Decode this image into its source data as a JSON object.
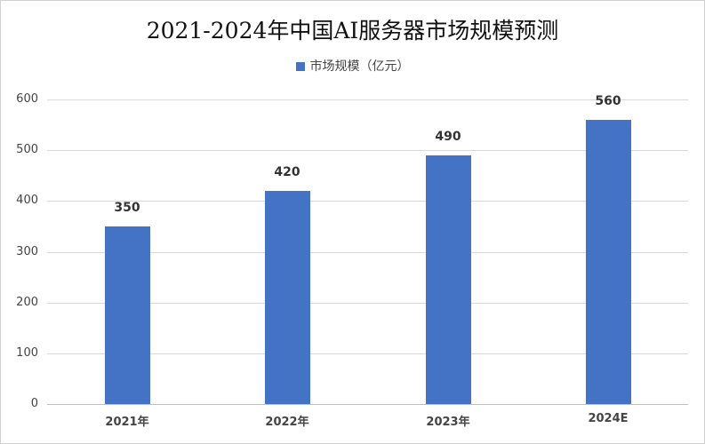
{
  "chart_data": {
    "type": "bar",
    "title": "2021-2024年中国AI服务器市场规模预测",
    "categories": [
      "2021年",
      "2022年",
      "2023年",
      "2024E"
    ],
    "series": [
      {
        "name": "市场规模（亿元）",
        "values": [
          350,
          420,
          490,
          560
        ],
        "color": "#4472C4"
      }
    ],
    "xlabel": "",
    "ylabel": "",
    "ylim": [
      0,
      600
    ],
    "yticks": [
      0,
      100,
      200,
      300,
      400,
      500,
      600
    ],
    "grid": true,
    "legend_position": "top",
    "data_labels": [
      "350",
      "420",
      "490",
      "560"
    ]
  }
}
